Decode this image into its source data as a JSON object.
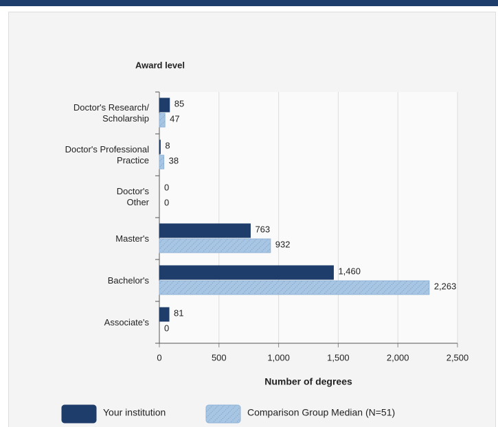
{
  "chart_data": {
    "type": "hbar",
    "title": "Award level",
    "xlabel": "Number of degrees",
    "categories": [
      "Doctor's Research/\nScholarship",
      "Doctor's Professional\nPractice",
      "Doctor's\nOther",
      "Master's",
      "Bachelor's",
      "Associate's"
    ],
    "series": [
      {
        "name": "Your institution",
        "color": "#1f3d6b",
        "values": [
          85,
          8,
          0,
          763,
          1460,
          81
        ],
        "value_labels": [
          "85",
          "8",
          "0",
          "763",
          "1,460",
          "81"
        ]
      },
      {
        "name": "Comparison Group Median (N=51)",
        "color": "#a8c6e4",
        "values": [
          47,
          38,
          0,
          932,
          2263,
          0
        ],
        "value_labels": [
          "47",
          "38",
          "0",
          "932",
          "2,263",
          "0"
        ]
      }
    ],
    "xlim": [
      0,
      2500
    ],
    "xticks": [
      0,
      500,
      {
        "value": 1000,
        "label": "1,000"
      },
      {
        "value": 1500,
        "label": "1,500"
      },
      {
        "value": 2000,
        "label": "2,000"
      },
      {
        "value": 2500,
        "label": "2,500"
      }
    ],
    "grid": true
  }
}
